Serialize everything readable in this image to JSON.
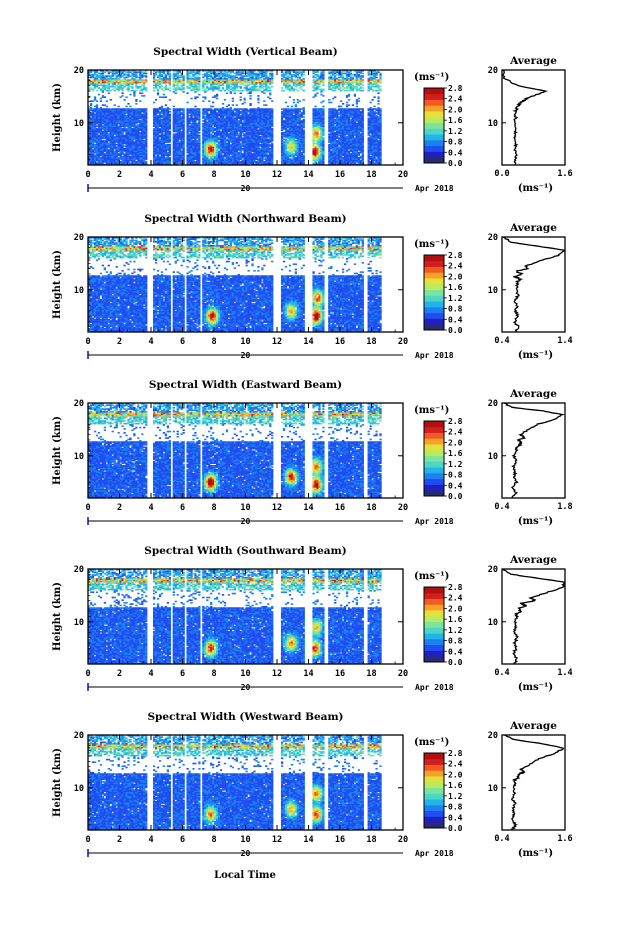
{
  "figure": {
    "xlabel": "Local Time",
    "date_label": "Apr 2018",
    "day_marker": "20"
  },
  "colorbar": {
    "unit": "(ms⁻¹)",
    "ticks": [
      "2.8",
      "2.4",
      "2.0",
      "1.6",
      "1.2",
      "0.8",
      "0.4",
      "0.0"
    ],
    "colors": [
      "#2a2a6e",
      "#2020c0",
      "#1f4ef0",
      "#1e7ff0",
      "#22b4e8",
      "#4cd6c8",
      "#7fe39b",
      "#b8ec5e",
      "#e6e03a",
      "#f6a22a",
      "#f25a22",
      "#d21e1e",
      "#b01010"
    ]
  },
  "chart_data": [
    {
      "type": "heatmap",
      "title": "Spectral Width (Vertical Beam)",
      "ylabel": "Height (km)",
      "xlim": [
        0,
        20
      ],
      "ylim": [
        2,
        20
      ],
      "xticks": [
        "0",
        "2",
        "4",
        "6",
        "8",
        "10",
        "12",
        "14",
        "16",
        "18",
        "20"
      ],
      "yticks": [
        "10",
        "20"
      ],
      "gaps_hours": [
        [
          3.8,
          4.1
        ],
        [
          5.2,
          5.4
        ],
        [
          6.1,
          6.3
        ],
        [
          7.1,
          7.3
        ],
        [
          11.7,
          12.2
        ],
        [
          13.7,
          14.2
        ],
        [
          15.0,
          15.2
        ],
        [
          17.5,
          17.8
        ],
        [
          18.6,
          20.0
        ]
      ],
      "hotspots": [
        {
          "x": 7.8,
          "y": 5.0,
          "v": 2.2
        },
        {
          "x": 12.9,
          "y": 5.5,
          "v": 1.4
        },
        {
          "x": 14.4,
          "y": 4.5,
          "v": 2.4
        },
        {
          "x": 14.5,
          "y": 8.0,
          "v": 1.8
        }
      ]
    },
    {
      "type": "heatmap",
      "title": "Spectral Width (Northward Beam)",
      "ylabel": "Height (km)",
      "xlim": [
        0,
        20
      ],
      "ylim": [
        2,
        20
      ],
      "xticks": [
        "0",
        "2",
        "4",
        "6",
        "8",
        "10",
        "12",
        "14",
        "16",
        "18",
        "20"
      ],
      "yticks": [
        "10",
        "20"
      ],
      "gaps_hours": [
        [
          3.8,
          4.1
        ],
        [
          5.2,
          5.4
        ],
        [
          6.1,
          6.3
        ],
        [
          7.1,
          7.3
        ],
        [
          11.7,
          12.2
        ],
        [
          13.7,
          14.2
        ],
        [
          15.0,
          15.2
        ],
        [
          17.5,
          17.8
        ],
        [
          18.6,
          20.0
        ]
      ],
      "hotspots": [
        {
          "x": 7.9,
          "y": 5.0,
          "v": 2.4
        },
        {
          "x": 12.9,
          "y": 6.0,
          "v": 1.6
        },
        {
          "x": 14.5,
          "y": 5.0,
          "v": 2.6
        },
        {
          "x": 14.6,
          "y": 8.5,
          "v": 2.0
        }
      ]
    },
    {
      "type": "heatmap",
      "title": "Spectral Width (Eastward Beam)",
      "ylabel": "Height (km)",
      "xlim": [
        0,
        20
      ],
      "ylim": [
        2,
        20
      ],
      "xticks": [
        "0",
        "2",
        "4",
        "6",
        "8",
        "10",
        "12",
        "14",
        "16",
        "18",
        "20"
      ],
      "yticks": [
        "10",
        "20"
      ],
      "gaps_hours": [
        [
          3.8,
          4.1
        ],
        [
          5.2,
          5.4
        ],
        [
          6.1,
          6.3
        ],
        [
          7.1,
          7.3
        ],
        [
          11.7,
          12.2
        ],
        [
          13.7,
          14.2
        ],
        [
          15.0,
          15.2
        ],
        [
          17.5,
          17.8
        ],
        [
          18.6,
          20.0
        ]
      ],
      "hotspots": [
        {
          "x": 7.8,
          "y": 5.0,
          "v": 2.6
        },
        {
          "x": 12.9,
          "y": 6.0,
          "v": 2.2
        },
        {
          "x": 14.5,
          "y": 4.5,
          "v": 2.4
        },
        {
          "x": 14.5,
          "y": 8.0,
          "v": 1.8
        }
      ]
    },
    {
      "type": "heatmap",
      "title": "Spectral Width (Southward Beam)",
      "ylabel": "Height (km)",
      "xlim": [
        0,
        20
      ],
      "ylim": [
        2,
        20
      ],
      "xticks": [
        "0",
        "2",
        "4",
        "6",
        "8",
        "10",
        "12",
        "14",
        "16",
        "18",
        "20"
      ],
      "yticks": [
        "10",
        "20"
      ],
      "gaps_hours": [
        [
          3.8,
          4.1
        ],
        [
          5.2,
          5.4
        ],
        [
          6.1,
          6.3
        ],
        [
          7.1,
          7.3
        ],
        [
          11.7,
          12.2
        ],
        [
          13.7,
          14.2
        ],
        [
          15.0,
          15.2
        ],
        [
          17.5,
          17.8
        ],
        [
          18.6,
          20.0
        ]
      ],
      "hotspots": [
        {
          "x": 7.8,
          "y": 5.0,
          "v": 2.2
        },
        {
          "x": 12.9,
          "y": 6.0,
          "v": 1.8
        },
        {
          "x": 14.4,
          "y": 5.0,
          "v": 2.2
        },
        {
          "x": 14.5,
          "y": 9.0,
          "v": 1.6
        }
      ]
    },
    {
      "type": "heatmap",
      "title": "Spectral Width (Westward Beam)",
      "ylabel": "Height (km)",
      "xlim": [
        0,
        20
      ],
      "ylim": [
        2,
        20
      ],
      "xticks": [
        "0",
        "2",
        "4",
        "6",
        "8",
        "10",
        "12",
        "14",
        "16",
        "18",
        "20"
      ],
      "yticks": [
        "10",
        "20"
      ],
      "gaps_hours": [
        [
          3.8,
          4.1
        ],
        [
          5.2,
          5.4
        ],
        [
          6.1,
          6.3
        ],
        [
          7.1,
          7.3
        ],
        [
          11.7,
          12.2
        ],
        [
          13.7,
          14.2
        ],
        [
          15.0,
          15.2
        ],
        [
          17.5,
          17.8
        ],
        [
          18.6,
          20.0
        ]
      ],
      "hotspots": [
        {
          "x": 7.8,
          "y": 5.0,
          "v": 1.8
        },
        {
          "x": 12.9,
          "y": 6.0,
          "v": 1.6
        },
        {
          "x": 14.5,
          "y": 5.0,
          "v": 2.0
        },
        {
          "x": 14.5,
          "y": 9.0,
          "v": 1.8
        }
      ]
    }
  ],
  "profiles": [
    {
      "type": "line",
      "title": "Average",
      "xlabel": "(ms⁻¹)",
      "xlim": [
        0.0,
        1.6
      ],
      "xticks": [
        "0.0",
        "1.6"
      ],
      "ylim": [
        2,
        20
      ],
      "yticks": [
        "10",
        "20"
      ],
      "x": [
        0.32,
        0.34,
        0.36,
        0.33,
        0.35,
        0.3,
        0.34,
        0.36,
        0.31,
        0.35,
        0.33,
        0.36,
        0.4,
        0.44,
        0.5,
        0.6,
        0.75,
        0.95,
        1.1,
        0.4,
        0.05,
        0.02
      ],
      "y": [
        2.0,
        3.0,
        4.0,
        5.0,
        6.0,
        7.0,
        8.0,
        9.0,
        10.0,
        11.0,
        12.0,
        12.5,
        13.0,
        13.5,
        14.0,
        14.5,
        15.0,
        15.5,
        16.0,
        17.0,
        18.5,
        20.0
      ]
    },
    {
      "type": "line",
      "title": "Average",
      "xlabel": "(ms⁻¹)",
      "xlim": [
        0.4,
        1.4
      ],
      "xticks": [
        "0.4",
        "1.4"
      ],
      "ylim": [
        2,
        20
      ],
      "yticks": [
        "10",
        "20"
      ],
      "x": [
        0.62,
        0.66,
        0.6,
        0.65,
        0.61,
        0.64,
        0.6,
        0.66,
        0.62,
        0.65,
        0.63,
        0.7,
        0.6,
        0.72,
        0.62,
        0.8,
        0.78,
        1.0,
        1.3,
        1.38,
        1.0,
        0.55,
        0.42
      ],
      "y": [
        2.0,
        3.0,
        4.0,
        5.0,
        6.0,
        7.0,
        8.0,
        9.0,
        10.0,
        11.0,
        11.5,
        12.0,
        12.5,
        13.0,
        13.5,
        14.0,
        14.5,
        15.5,
        16.5,
        17.5,
        18.2,
        19.0,
        20.0
      ]
    },
    {
      "type": "line",
      "title": "Average",
      "xlabel": "(ms⁻¹)",
      "xlim": [
        0.4,
        1.8
      ],
      "xticks": [
        "0.4",
        "1.8"
      ],
      "ylim": [
        2,
        20
      ],
      "yticks": [
        "10",
        "20"
      ],
      "x": [
        0.62,
        0.7,
        0.64,
        0.72,
        0.66,
        0.7,
        0.65,
        0.72,
        0.66,
        0.74,
        0.7,
        0.78,
        0.82,
        0.76,
        0.92,
        0.8,
        1.0,
        1.2,
        1.6,
        1.75,
        1.3,
        0.6,
        0.45
      ],
      "y": [
        2.0,
        3.0,
        4.0,
        5.0,
        6.0,
        7.0,
        8.0,
        9.0,
        10.0,
        11.0,
        11.5,
        12.0,
        12.5,
        13.0,
        13.5,
        14.0,
        15.0,
        16.0,
        17.0,
        17.8,
        18.5,
        19.2,
        20.0
      ]
    },
    {
      "type": "line",
      "title": "Average",
      "xlabel": "(ms⁻¹)",
      "xlim": [
        0.4,
        1.4
      ],
      "xticks": [
        "0.4",
        "1.4"
      ],
      "ylim": [
        2,
        20
      ],
      "yticks": [
        "10",
        "20"
      ],
      "x": [
        0.6,
        0.64,
        0.58,
        0.63,
        0.6,
        0.64,
        0.59,
        0.63,
        0.6,
        0.64,
        0.62,
        0.7,
        0.66,
        0.78,
        0.7,
        0.92,
        0.85,
        1.1,
        1.36,
        1.4,
        1.0,
        0.55,
        0.42
      ],
      "y": [
        2.0,
        3.0,
        4.0,
        5.0,
        6.0,
        7.0,
        8.0,
        9.0,
        10.0,
        11.0,
        11.5,
        12.0,
        12.5,
        13.0,
        13.5,
        14.0,
        14.5,
        15.5,
        16.5,
        17.5,
        18.2,
        19.0,
        20.0
      ]
    },
    {
      "type": "line",
      "title": "Average",
      "xlabel": "(ms⁻¹)",
      "xlim": [
        0.4,
        1.6
      ],
      "xticks": [
        "0.4",
        "1.6"
      ],
      "ylim": [
        2,
        20
      ],
      "yticks": [
        "10",
        "20"
      ],
      "x": [
        0.6,
        0.66,
        0.58,
        0.64,
        0.6,
        0.65,
        0.6,
        0.64,
        0.61,
        0.66,
        0.64,
        0.72,
        0.7,
        0.82,
        0.76,
        0.95,
        1.1,
        1.4,
        1.58,
        1.2,
        0.6,
        0.45
      ],
      "y": [
        2.0,
        3.0,
        4.0,
        5.0,
        6.0,
        7.0,
        8.0,
        9.0,
        10.0,
        11.0,
        11.5,
        12.0,
        12.5,
        13.0,
        13.5,
        14.5,
        15.5,
        16.5,
        17.5,
        18.3,
        19.2,
        20.0
      ]
    }
  ]
}
